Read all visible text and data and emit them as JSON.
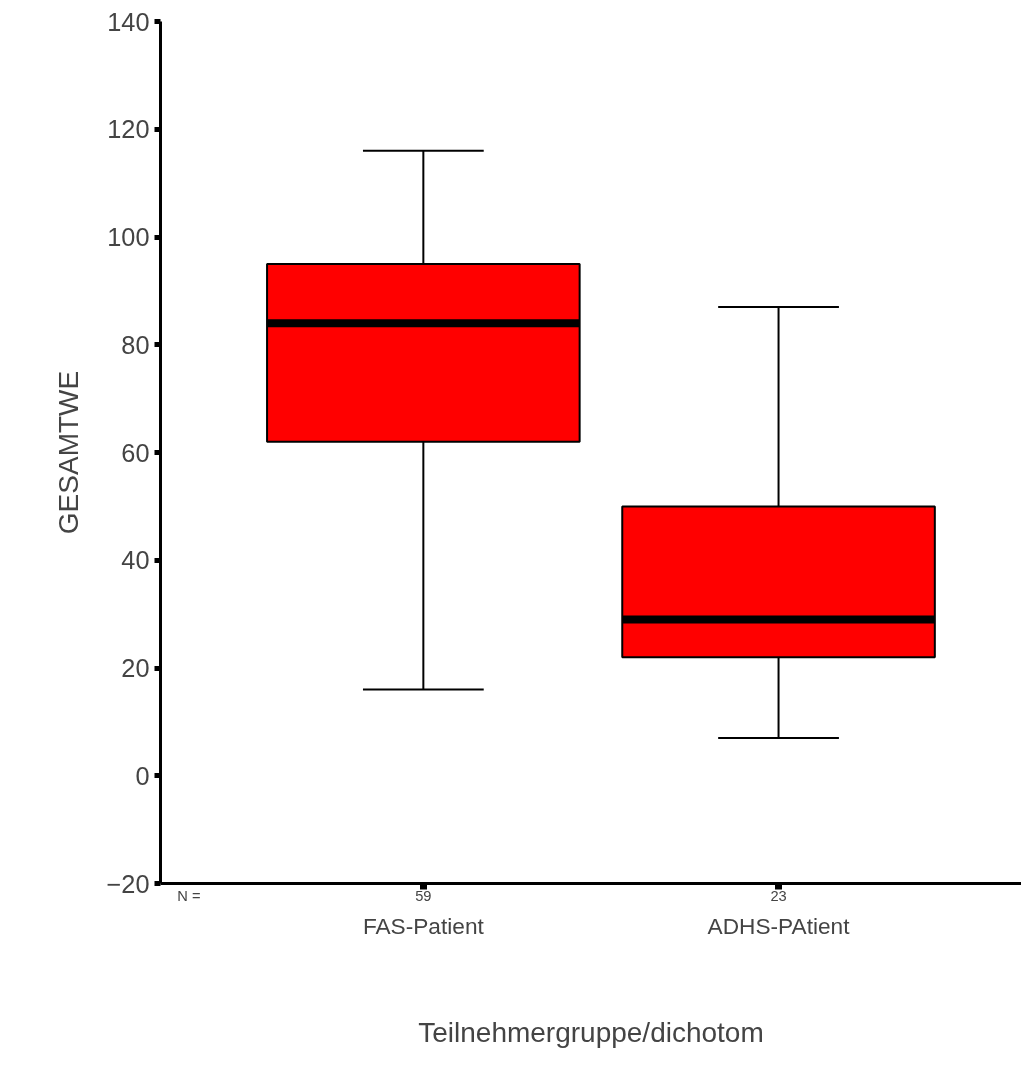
{
  "chart_data": {
    "type": "box",
    "xlabel": "Teilnehmergruppe/dichotom",
    "ylabel": "GESAMTWE",
    "categories": [
      "FAS-Patient",
      "ADHS-PAtient"
    ],
    "series": [
      {
        "color": "#ff0000",
        "boxes": [
          {
            "low": 16,
            "q1": 62,
            "median": 84,
            "q3": 95,
            "high": 116
          },
          {
            "low": 7,
            "q1": 22,
            "median": 29,
            "q3": 50,
            "high": 87
          }
        ]
      }
    ],
    "ylim": [
      -20,
      140
    ],
    "yticks": [
      -20,
      0,
      20,
      40,
      60,
      80,
      100,
      120,
      140
    ],
    "grid": false,
    "annotations": [
      "N =",
      "59",
      "23"
    ]
  }
}
